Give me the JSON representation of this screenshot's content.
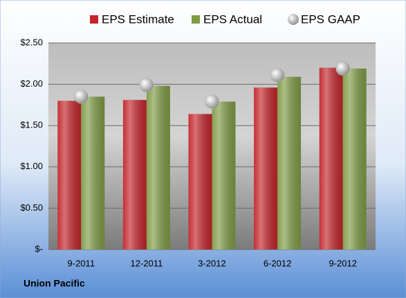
{
  "chart_data": {
    "type": "bar",
    "caption": "Union Pacific",
    "categories": [
      "9-2011",
      "12-2011",
      "3-2012",
      "6-2012",
      "9-2012"
    ],
    "series": [
      {
        "name": "EPS Estimate",
        "type": "bar",
        "color": "#c3252b",
        "values": [
          1.8,
          1.81,
          1.64,
          1.96,
          2.2
        ]
      },
      {
        "name": "EPS Actual",
        "type": "bar",
        "color": "#7f9b46",
        "values": [
          1.85,
          1.98,
          1.79,
          2.09,
          2.19
        ]
      },
      {
        "name": "EPS GAAP",
        "type": "scatter",
        "color": "#a8a8a8",
        "values": [
          1.85,
          1.99,
          1.79,
          2.11,
          2.19
        ]
      }
    ],
    "ylim": [
      0,
      2.5
    ],
    "yticks": [
      {
        "value": 0,
        "label": "$-"
      },
      {
        "value": 0.5,
        "label": "$0.50"
      },
      {
        "value": 1,
        "label": "$1.00"
      },
      {
        "value": 1.5,
        "label": "$1.50"
      },
      {
        "value": 2,
        "label": "$2.00"
      },
      {
        "value": 2.5,
        "label": "$2.50"
      }
    ],
    "grid": true
  }
}
